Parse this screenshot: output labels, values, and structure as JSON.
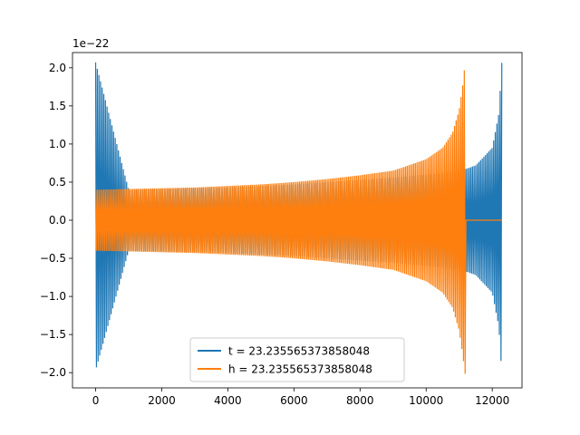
{
  "chart_data": {
    "type": "line",
    "title": "",
    "xlabel": "",
    "ylabel": "",
    "y_offset_label": "1e−22",
    "xlim": [
      -700,
      12900
    ],
    "ylim": [
      -2.2,
      2.2
    ],
    "xticks": [
      0,
      2000,
      4000,
      6000,
      8000,
      10000,
      12000
    ],
    "xtick_labels": [
      "0",
      "2000",
      "4000",
      "6000",
      "8000",
      "10000",
      "12000"
    ],
    "yticks": [
      -2.0,
      -1.5,
      -1.0,
      -0.5,
      0.0,
      0.5,
      1.0,
      1.5,
      2.0
    ],
    "ytick_labels": [
      "−2.0",
      "−1.5",
      "−1.0",
      "−0.5",
      "0.0",
      "0.5",
      "1.0",
      "1.5",
      "2.0"
    ],
    "grid": false,
    "legend_position": "lower-center",
    "series": [
      {
        "name": "t = 23.235565373858048",
        "color": "#1f77b4",
        "envelope": {
          "x": [
            0,
            1000,
            2000,
            3000,
            4000,
            5000,
            6000,
            7000,
            8000,
            9000,
            10000,
            10500,
            11000,
            11250,
            11500,
            12000,
            12200,
            12290
          ],
          "y_max": [
            2.07,
            0.4,
            0.41,
            0.42,
            0.43,
            0.45,
            0.47,
            0.5,
            0.53,
            0.56,
            0.6,
            0.62,
            0.65,
            0.68,
            0.72,
            0.95,
            1.4,
            2.07
          ],
          "y_min": [
            -1.97,
            -0.4,
            -0.41,
            -0.42,
            -0.43,
            -0.45,
            -0.47,
            -0.5,
            -0.53,
            -0.56,
            -0.6,
            -0.62,
            -0.65,
            -0.68,
            -0.72,
            -0.95,
            -1.4,
            -2.02
          ]
        }
      },
      {
        "name": "h = 23.235565373858048",
        "color": "#ff7f0e",
        "envelope": {
          "x": [
            0,
            1000,
            2000,
            3000,
            4000,
            5000,
            6000,
            7000,
            8000,
            9000,
            10000,
            10500,
            10800,
            11000,
            11100,
            11180,
            11200,
            12290
          ],
          "y_max": [
            0.4,
            0.41,
            0.42,
            0.43,
            0.45,
            0.47,
            0.5,
            0.54,
            0.59,
            0.65,
            0.8,
            0.95,
            1.15,
            1.45,
            1.75,
            2.07,
            0.0,
            0.0
          ],
          "y_min": [
            -0.4,
            -0.41,
            -0.42,
            -0.43,
            -0.45,
            -0.47,
            -0.5,
            -0.54,
            -0.59,
            -0.65,
            -0.8,
            -0.95,
            -1.15,
            -1.45,
            -1.75,
            -2.02,
            0.0,
            0.0
          ]
        }
      }
    ]
  }
}
